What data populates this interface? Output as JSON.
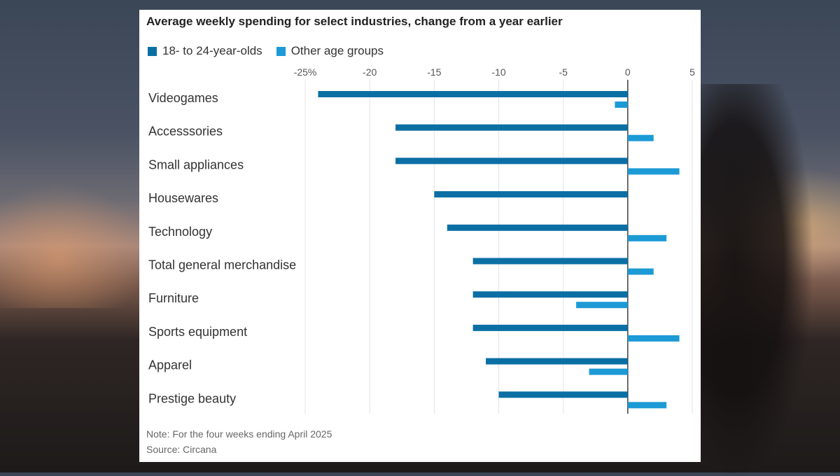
{
  "chart_data": {
    "type": "bar",
    "orientation": "horizontal",
    "title": "Average weekly spending for select industries, change from a year earlier",
    "categories": [
      "Videogames",
      "Accesssories",
      "Small appliances",
      "Housewares",
      "Technology",
      "Total general merchandise",
      "Furniture",
      "Sports equipment",
      "Apparel",
      "Prestige beauty"
    ],
    "series": [
      {
        "name": "18- to 24-year-olds",
        "color": "#0b6fa4",
        "values": [
          -24,
          -18,
          -18,
          -15,
          -14,
          -12,
          -12,
          -12,
          -11,
          -10
        ]
      },
      {
        "name": "Other age groups",
        "color": "#1c9ad6",
        "values": [
          -1,
          2,
          4,
          null,
          3,
          2,
          -4,
          4,
          -3,
          3
        ]
      }
    ],
    "xlim": [
      -25,
      5
    ],
    "xticks": [
      -25,
      -20,
      -15,
      -10,
      -5,
      0,
      5
    ],
    "xtick_labels": [
      "-25%",
      "-20",
      "-15",
      "-10",
      "-5",
      "0",
      "5"
    ],
    "xlabel": "",
    "ylabel": "",
    "grid": true,
    "legend_position": "top-left"
  },
  "footer": {
    "note": "Note: For the four weeks ending April 2025",
    "source": "Source: Circana"
  }
}
